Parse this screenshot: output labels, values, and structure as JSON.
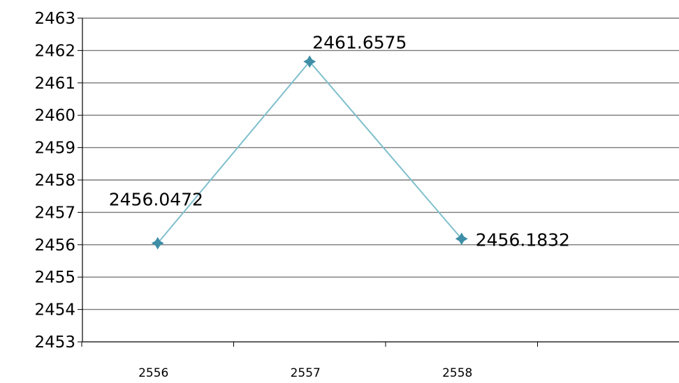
{
  "chart_data": {
    "type": "line",
    "categories": [
      "2556",
      "2557",
      "2558"
    ],
    "series": [
      {
        "values": [
          2456.0472,
          2461.6575,
          2456.1832
        ]
      }
    ],
    "data_labels": [
      "2456.0472",
      "2461.6575",
      "2456.1832"
    ],
    "y_ticks": [
      "2463",
      "2462",
      "2461",
      "2460",
      "2459",
      "2458",
      "2457",
      "2456",
      "2455",
      "2454",
      "2453"
    ],
    "ylim": [
      2453,
      2463
    ],
    "grid": true,
    "legend": "none",
    "colors": {
      "line": "#7fbfcc",
      "marker": "#3e8ea6",
      "grid": "#7a7a7a",
      "axis": "#000000"
    }
  }
}
